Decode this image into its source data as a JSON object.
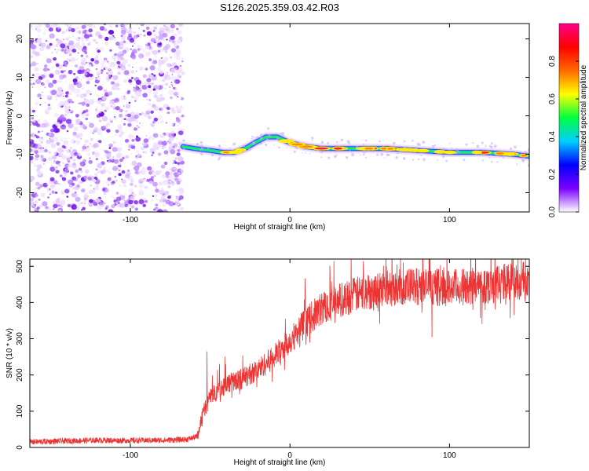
{
  "title": "S126.2025.359.03.42.R03",
  "colors": {
    "snr_line": "#ee3333",
    "frame": "#000000",
    "noise_purple": "#7a22ee",
    "trace_core": "#ee2222"
  },
  "chart_data": [
    {
      "type": "heatmap",
      "name": "spectrogram",
      "xlabel": "Height of straight line (km)",
      "ylabel": "Frequency (Hz)",
      "xlim": [
        -163,
        150
      ],
      "ylim": [
        -25,
        24
      ],
      "xticks": [
        -100,
        0,
        100
      ],
      "xtick_labels": [
        "-100",
        "0",
        "100"
      ],
      "yticks": [
        -20,
        -10,
        0,
        10,
        20
      ],
      "ytick_labels": [
        "-20",
        "-10",
        "0",
        "10",
        "20"
      ],
      "noise_region_x": [
        -163,
        -67
      ],
      "trace": {
        "x": [
          -67,
          -60,
          -50,
          -42,
          -35,
          -28,
          -22,
          -15,
          -8,
          0,
          10,
          20,
          40,
          60,
          80,
          100,
          120,
          140,
          150
        ],
        "frequency_hz": [
          -8,
          -8.5,
          -9,
          -9.5,
          -9.5,
          -8.5,
          -7,
          -5.5,
          -5.5,
          -7,
          -8,
          -8.5,
          -8.5,
          -8.5,
          -9,
          -9.5,
          -9.5,
          -10,
          -10.5
        ]
      },
      "colorbar": {
        "label": "Normalized spectral amplitude",
        "range": [
          0,
          1
        ],
        "ticks": [
          0.0,
          0.2,
          0.4,
          0.6,
          0.8
        ],
        "tick_labels": [
          "0.0",
          "0.2",
          "0.4",
          "0.6",
          "0.8"
        ],
        "colors": [
          "#ffffff",
          "#7a00ff",
          "#0000ff",
          "#00d0ff",
          "#00ff40",
          "#ffff00",
          "#ff6a00",
          "#ff0000",
          "#ff0088"
        ]
      }
    },
    {
      "type": "line",
      "name": "snr",
      "xlabel": "Height of straight line (km)",
      "ylabel": "SNR (10 * v/v)",
      "xlim": [
        -163,
        150
      ],
      "ylim": [
        0,
        520
      ],
      "xticks": [
        -100,
        0,
        100
      ],
      "xtick_labels": [
        "-100",
        "0",
        "100"
      ],
      "yticks": [
        0,
        100,
        200,
        300,
        400,
        500
      ],
      "ytick_labels": [
        "0",
        "100",
        "200",
        "300",
        "400",
        "500"
      ],
      "series": [
        {
          "name": "SNR",
          "x": [
            -163,
            -140,
            -120,
            -100,
            -80,
            -65,
            -58,
            -55,
            -50,
            -40,
            -30,
            -20,
            -10,
            0,
            10,
            20,
            30,
            40,
            60,
            80,
            100,
            120,
            140,
            150
          ],
          "y": [
            15,
            18,
            20,
            19,
            20,
            22,
            30,
            90,
            140,
            175,
            190,
            215,
            250,
            295,
            345,
            385,
            405,
            420,
            440,
            445,
            440,
            445,
            460,
            450
          ],
          "peaks": [
            [
              -52,
              265
            ],
            [
              55,
              480
            ],
            [
              105,
              450
            ],
            [
              145,
              520
            ]
          ]
        }
      ]
    }
  ]
}
